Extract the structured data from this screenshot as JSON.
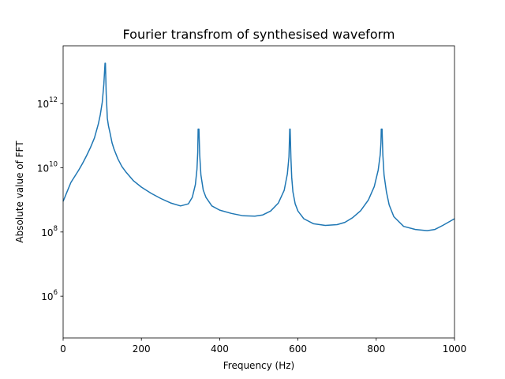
{
  "chart_data": {
    "type": "line",
    "title": "Fourier transfrom of synthesised waveform",
    "xlabel": "Frequency (Hz)",
    "ylabel": "Absolute value of FFT",
    "xlim": [
      0,
      1000
    ],
    "ylim_log10": [
      4.7,
      13.8
    ],
    "yscale": "log",
    "grid": false,
    "line_color": "#1f77b4",
    "x_ticks": [
      {
        "value": 0,
        "label": "0"
      },
      {
        "value": 200,
        "label": "200"
      },
      {
        "value": 400,
        "label": "400"
      },
      {
        "value": 600,
        "label": "600"
      },
      {
        "value": 800,
        "label": "800"
      },
      {
        "value": 1000,
        "label": "1000"
      }
    ],
    "y_ticks": [
      {
        "exp": 6,
        "base": "10",
        "power": "6"
      },
      {
        "exp": 8,
        "base": "10",
        "power": "8"
      },
      {
        "exp": 10,
        "base": "10",
        "power": "10"
      },
      {
        "exp": 12,
        "base": "10",
        "power": "12"
      }
    ],
    "series": [
      {
        "x": [
          0,
          10,
          20,
          30,
          40,
          50,
          60,
          70,
          80,
          90,
          95,
          100,
          104,
          107,
          108,
          110,
          112,
          113,
          116,
          120,
          125,
          130,
          140,
          150,
          160,
          180,
          200,
          225,
          250,
          275,
          300,
          320,
          330,
          338,
          342,
          344,
          345,
          347,
          349,
          352,
          358,
          365,
          380,
          400,
          430,
          460,
          490,
          510,
          530,
          550,
          565,
          573,
          577,
          579,
          580,
          582,
          584,
          587,
          593,
          600,
          615,
          640,
          670,
          700,
          720,
          740,
          760,
          780,
          795,
          805,
          810,
          812,
          813,
          815,
          817,
          820,
          826,
          833,
          845,
          870,
          900,
          930,
          950,
          970,
          990,
          1000
        ],
        "y": [
          900000000.0,
          1800000000.0,
          3500000000.0,
          5500000000.0,
          8500000000.0,
          14000000000.0,
          24000000000.0,
          43000000000.0,
          85000000000.0,
          230000000000.0,
          450000000000.0,
          1100000000000.0,
          4000000000000.0,
          18000000000000.0,
          18000000000000.0,
          2000000000000.0,
          600000000000.0,
          350000000000.0,
          200000000000.0,
          120000000000.0,
          60000000000.0,
          38000000000.0,
          19000000000.0,
          11000000000.0,
          7500000000.0,
          3900000000.0,
          2500000000.0,
          1600000000.0,
          1100000000.0,
          800000000.0,
          650000000.0,
          750000000.0,
          1200000000.0,
          3000000000.0,
          9000000000.0,
          30000000000.0,
          160000000000.0,
          160000000000.0,
          25000000000.0,
          6000000000.0,
          2000000000.0,
          1200000000.0,
          650000000.0,
          480000000.0,
          380000000.0,
          320000000.0,
          310000000.0,
          340000000.0,
          450000000.0,
          800000000.0,
          2000000000.0,
          6500000000.0,
          22000000000.0,
          160000000000.0,
          160000000000.0,
          20000000000.0,
          5000000000.0,
          1800000000.0,
          750000000.0,
          450000000.0,
          260000000.0,
          180000000.0,
          160000000.0,
          170000000.0,
          200000000.0,
          280000000.0,
          460000000.0,
          1000000000.0,
          2600000000.0,
          8500000000.0,
          25000000000.0,
          60000000000.0,
          160000000000.0,
          160000000000.0,
          25000000000.0,
          6000000000.0,
          1800000000.0,
          700000000.0,
          300000000.0,
          150000000.0,
          120000000.0,
          110000000.0,
          120000000.0,
          160000000.0,
          220000000.0,
          260000000.0
        ]
      }
    ]
  }
}
